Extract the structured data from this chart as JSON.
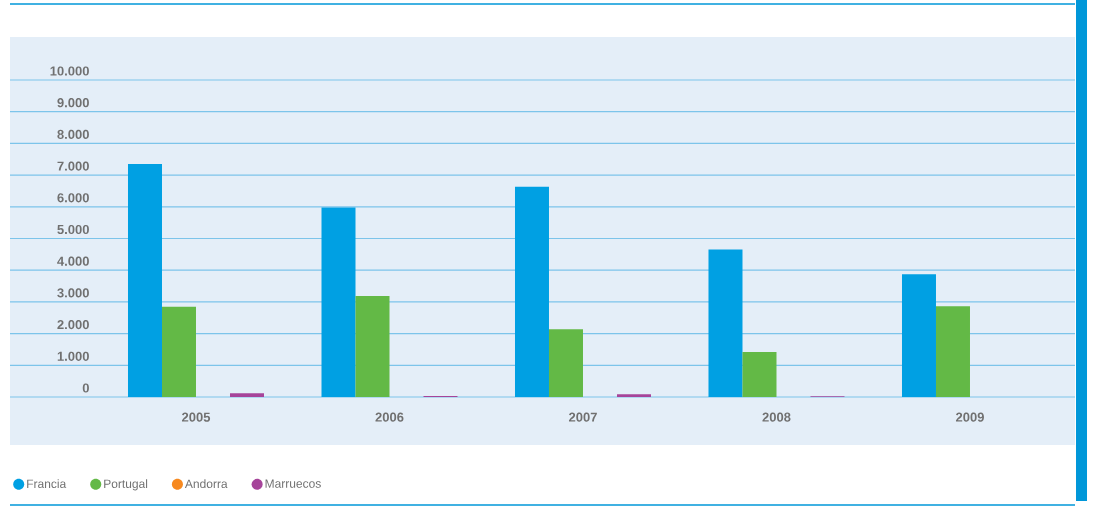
{
  "chart_data": {
    "type": "bar",
    "categories": [
      "2005",
      "2006",
      "2007",
      "2008",
      "2009"
    ],
    "series": [
      {
        "name": "Francia",
        "color": "#00a0e3",
        "values": [
          7350,
          5980,
          6630,
          4650,
          3870
        ]
      },
      {
        "name": "Portugal",
        "color": "#63b946",
        "values": [
          2850,
          3190,
          2140,
          1420,
          2860
        ]
      },
      {
        "name": "Andorra",
        "color": "#f7891f",
        "values": [
          0,
          0,
          0,
          0,
          0
        ]
      },
      {
        "name": "Marruecos",
        "color": "#a6449a",
        "values": [
          120,
          30,
          90,
          20,
          0
        ]
      }
    ],
    "ylim": [
      0,
      10000
    ],
    "yticks": [
      {
        "value": 0,
        "label": "0"
      },
      {
        "value": 1000,
        "label": "1.000"
      },
      {
        "value": 2000,
        "label": "2.000"
      },
      {
        "value": 3000,
        "label": "3.000"
      },
      {
        "value": 4000,
        "label": "4.000"
      },
      {
        "value": 5000,
        "label": "5.000"
      },
      {
        "value": 6000,
        "label": "6.000"
      },
      {
        "value": 7000,
        "label": "7.000"
      },
      {
        "value": 8000,
        "label": "8.000"
      },
      {
        "value": 9000,
        "label": "9.000"
      },
      {
        "value": 10000,
        "label": "10.000"
      }
    ],
    "grid": "y",
    "legend": "bottom left"
  }
}
